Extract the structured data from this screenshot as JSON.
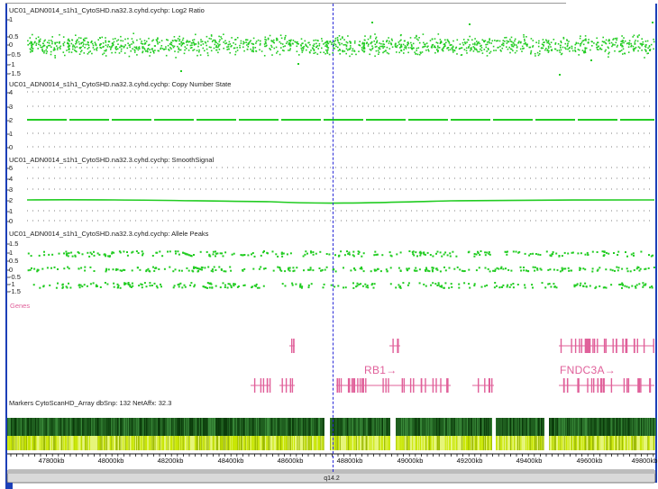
{
  "tracks": [
    {
      "title": "UC01_ADN0014_s1h1_CytoSHD.na32.3.cyhd.cychp: Log2 Ratio",
      "ticks": [
        "1",
        "0.5",
        "0",
        "-0.5",
        "-1",
        "-1.5"
      ]
    },
    {
      "title": "UC01_ADN0014_s1h1_CytoSHD.na32.3.cyhd.cychp: Copy Number State",
      "ticks": [
        "4",
        "3",
        "2",
        "1",
        "0"
      ]
    },
    {
      "title": "UC01_ADN0014_s1h1_CytoSHD.na32.3.cyhd.cychp: SmoothSignal",
      "ticks": [
        "5",
        "4",
        "3",
        "2",
        "1",
        "0"
      ]
    },
    {
      "title": "UC01_ADN0014_s1h1_CytoSHD.na32.3.cyhd.cychp: Allele Peaks",
      "ticks": [
        "1.5",
        "1",
        "0.5",
        "0",
        "-0.5",
        "-1",
        "-1.5"
      ]
    }
  ],
  "genes": {
    "label": "Genes",
    "names": [
      "RB1→",
      "FNDC3A→"
    ]
  },
  "markers": {
    "title": "Markers CytoScanHD_Array dbSnp: 132 NetAffx: 32.3"
  },
  "axis": {
    "kb_labels": [
      "47800kb",
      "48000kb",
      "48200kb",
      "48400kb",
      "48600kb",
      "48800kb",
      "49000kb",
      "49200kb",
      "49400kb",
      "49600kb",
      "49800kb"
    ],
    "band": "q14.2"
  },
  "colors": {
    "data_green": "#22cc22",
    "gene_pink": "#e0609a",
    "cursor_blue": "#2a2ad8",
    "frame_blue": "#1c3fb7",
    "marker_dark": "#0a3a0a",
    "marker_lime": "#c8e600"
  }
}
